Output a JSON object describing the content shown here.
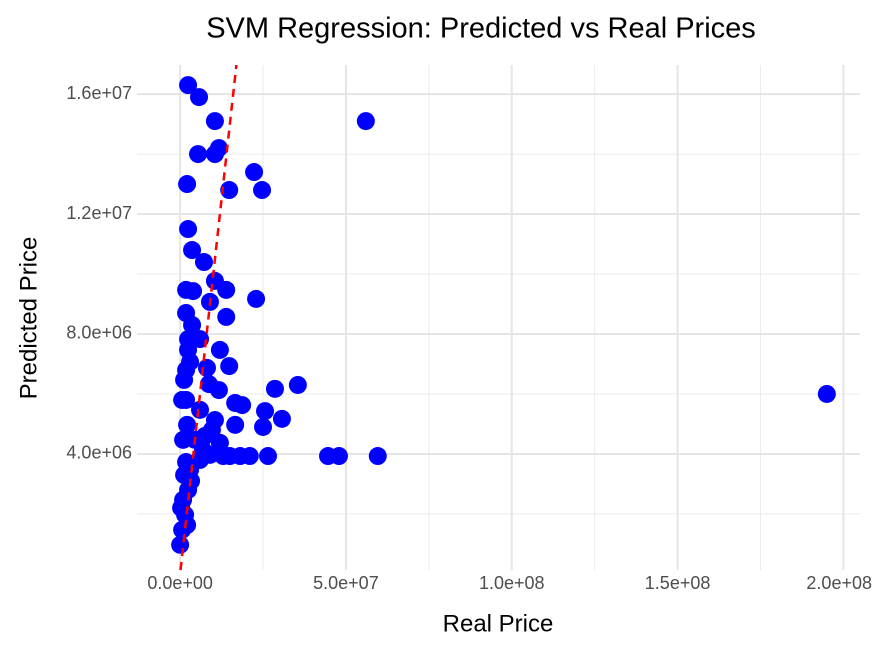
{
  "chart_data": {
    "type": "scatter",
    "title": "SVM Regression: Predicted vs Real Prices",
    "x_label": "Real Price",
    "y_label": "Predicted Price",
    "color": "blue",
    "grid": true,
    "xlim": [
      -13000000,
      205000000
    ],
    "ylim": [
      130000,
      16970000
    ],
    "xticks": [
      {
        "value": 0,
        "label": "0.0e+00"
      },
      {
        "value": 50000000,
        "label": "5.0e+07"
      },
      {
        "value": 100000000,
        "label": "1.0e+08"
      },
      {
        "value": 150000000,
        "label": "1.5e+08"
      },
      {
        "value": 200000000,
        "label": "2.0e+08"
      }
    ],
    "yticks": [
      {
        "value": 4000000,
        "label": "4.0e+06"
      },
      {
        "value": 8000000,
        "label": "8.0e+06"
      },
      {
        "value": 12000000,
        "label": "1.2e+07"
      },
      {
        "value": 16000000,
        "label": "1.6e+07"
      }
    ],
    "x_minor_grid": [
      25000000,
      75000000,
      125000000,
      175000000
    ],
    "y_minor_grid": [
      2000000,
      6000000,
      10000000,
      14000000
    ],
    "reference_line": {
      "slope": 1,
      "intercept": 0,
      "color": "red",
      "dashed": true
    },
    "x": [
      2400000,
      5700000,
      56000000,
      10500000,
      11700000,
      10500000,
      5400000,
      22300000,
      2100000,
      24700000,
      14800000,
      2400000,
      3600000,
      7200000,
      10500000,
      1800000,
      3900000,
      13900000,
      9000000,
      22900000,
      1800000,
      13900000,
      2400000,
      6000000,
      2400000,
      12000000,
      3000000,
      14800000,
      8100000,
      1200000,
      35500000,
      28600000,
      11700000,
      8700000,
      16600000,
      18700000,
      25600000,
      30700000,
      25000000,
      16600000,
      1800000,
      6000000,
      10500000,
      12000000,
      4500000,
      9000000,
      21000000,
      26500000,
      44600000,
      47900000,
      59600000,
      195000000,
      18100000,
      6000000,
      0,
      600000,
      1500000,
      900000,
      2400000,
      1200000,
      3000000,
      1800000,
      300000,
      2100000,
      900000,
      2100000,
      600000,
      1800000,
      3600000,
      4800000,
      6900000,
      9600000,
      15000000,
      13000000,
      7500000,
      3300000
    ],
    "y": [
      16300000,
      15900000,
      15100000,
      15100000,
      14200000,
      14000000,
      14000000,
      13400000,
      13000000,
      12800000,
      12800000,
      11500000,
      10800000,
      10400000,
      9770000,
      9470000,
      9430000,
      9470000,
      9070000,
      9170000,
      8700000,
      8570000,
      7830000,
      7830000,
      7470000,
      7470000,
      7070000,
      6930000,
      6870000,
      6470000,
      6300000,
      6170000,
      6130000,
      6330000,
      5700000,
      5630000,
      5430000,
      5170000,
      4900000,
      4970000,
      5800000,
      5470000,
      5130000,
      4370000,
      4470000,
      3970000,
      3930000,
      3930000,
      3930000,
      3930000,
      3930000,
      6000000,
      3930000,
      3800000,
      970000,
      1470000,
      1970000,
      2470000,
      2800000,
      3300000,
      3470000,
      3730000,
      2200000,
      1630000,
      4470000,
      4970000,
      5800000,
      6800000,
      8300000,
      4470000,
      4130000,
      4800000,
      3930000,
      3930000,
      4600000,
      3100000
    ]
  }
}
